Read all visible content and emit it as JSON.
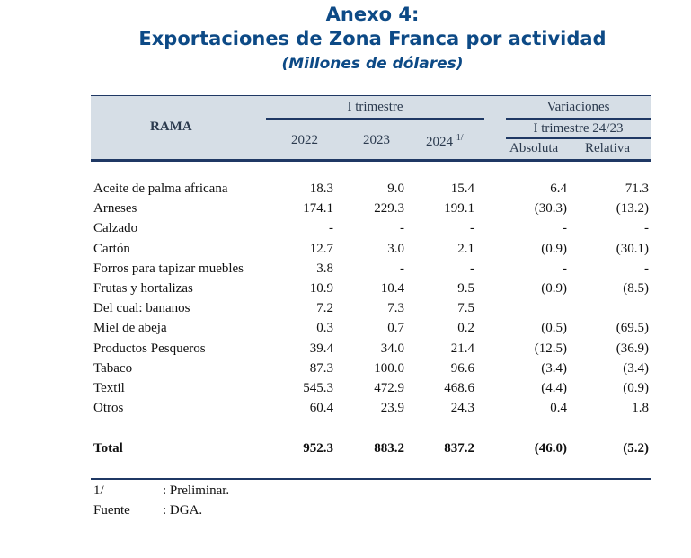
{
  "title": {
    "line1": "Anexo 4:",
    "line2": "Exportaciones de Zona Franca por actividad",
    "line3": "(Millones de dólares)"
  },
  "header": {
    "rama": "RAMA",
    "period_group": "I trimestre",
    "years": [
      "2022",
      "2023",
      "2024"
    ],
    "year_note": "1/",
    "variations": "Variaciones",
    "variations_sub": "I trimestre 24/23",
    "absolute": "Absoluta",
    "relative": "Relativa"
  },
  "rows": [
    {
      "label": "Aceite de palma africana",
      "v2022": "18.3",
      "v2023": "9.0",
      "v2024": "15.4",
      "abs": "6.4",
      "rel": "71.3"
    },
    {
      "label": "Arneses",
      "v2022": "174.1",
      "v2023": "229.3",
      "v2024": "199.1",
      "abs": "(30.3)",
      "rel": "(13.2)"
    },
    {
      "label": "Calzado",
      "v2022": "-",
      "v2023": "-",
      "v2024": "-",
      "abs": "-",
      "rel": "-"
    },
    {
      "label": "Cartón",
      "v2022": "12.7",
      "v2023": "3.0",
      "v2024": "2.1",
      "abs": "(0.9)",
      "rel": "(30.1)"
    },
    {
      "label": "Forros para tapizar muebles",
      "v2022": "3.8",
      "v2023": "-",
      "v2024": "-",
      "abs": "-",
      "rel": "-"
    },
    {
      "label": "Frutas y hortalizas",
      "v2022": "10.9",
      "v2023": "10.4",
      "v2024": "9.5",
      "abs": "(0.9)",
      "rel": "(8.5)"
    },
    {
      "label": "Del cual: bananos",
      "v2022": "7.2",
      "v2023": "7.3",
      "v2024": "7.5",
      "abs": "",
      "rel": ""
    },
    {
      "label": "Miel de abeja",
      "v2022": "0.3",
      "v2023": "0.7",
      "v2024": "0.2",
      "abs": "(0.5)",
      "rel": "(69.5)"
    },
    {
      "label": "Productos Pesqueros",
      "v2022": "39.4",
      "v2023": "34.0",
      "v2024": "21.4",
      "abs": "(12.5)",
      "rel": "(36.9)"
    },
    {
      "label": "Tabaco",
      "v2022": "87.3",
      "v2023": "100.0",
      "v2024": "96.6",
      "abs": "(3.4)",
      "rel": "(3.4)"
    },
    {
      "label": "Textil",
      "v2022": "545.3",
      "v2023": "472.9",
      "v2024": "468.6",
      "abs": "(4.4)",
      "rel": "(0.9)"
    },
    {
      "label": "Otros",
      "v2022": "60.4",
      "v2023": "23.9",
      "v2024": "24.3",
      "abs": "0.4",
      "rel": "1.8"
    }
  ],
  "total": {
    "label": "Total",
    "v2022": "952.3",
    "v2023": "883.2",
    "v2024": "837.2",
    "abs": "(46.0)",
    "rel": "(5.2)"
  },
  "footnotes": [
    {
      "key": "1/",
      "text": ": Preliminar."
    },
    {
      "key": "Fuente",
      "text": ": DGA."
    }
  ]
}
